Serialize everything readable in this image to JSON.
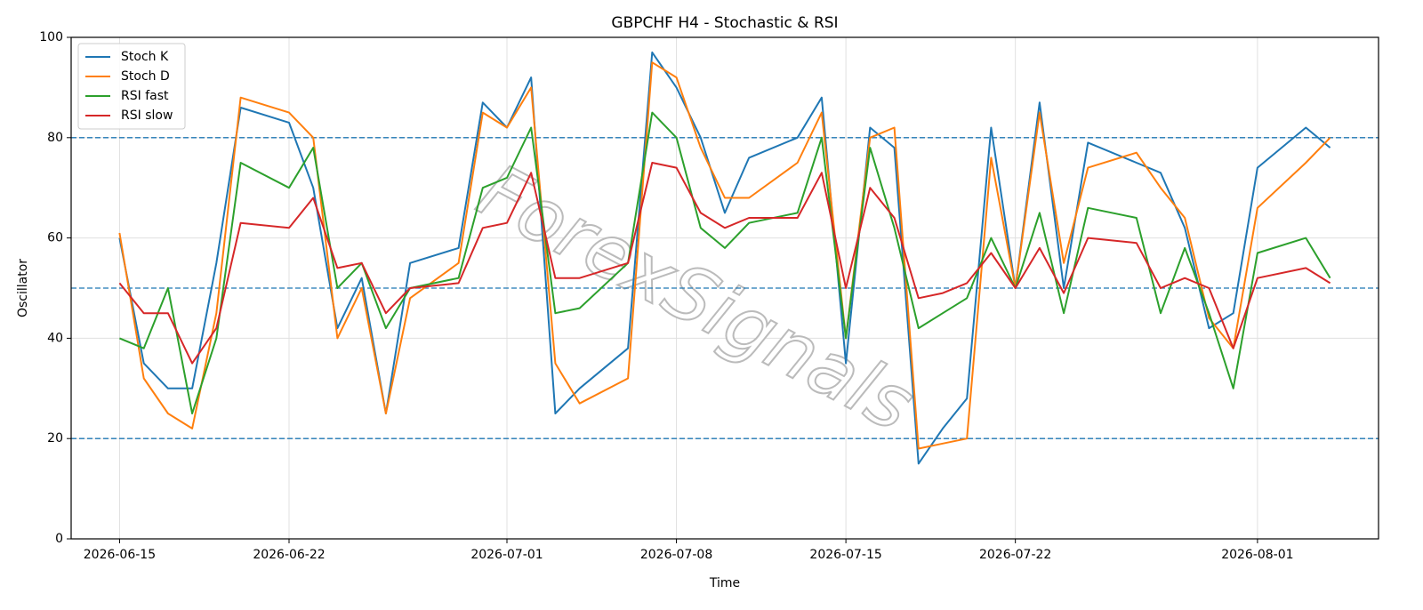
{
  "chart_data": {
    "type": "line",
    "title": "GBPCHF H4 - Stochastic & RSI",
    "x_label": "Time",
    "y_label": "Oscillator",
    "watermark": "ForexSignals",
    "x": [
      "2026-06-15",
      "2026-06-16",
      "2026-06-17",
      "2026-06-18",
      "2026-06-19",
      "2026-06-20",
      "2026-06-22",
      "2026-06-23",
      "2026-06-24",
      "2026-06-25",
      "2026-06-26",
      "2026-06-27",
      "2026-06-29",
      "2026-06-30",
      "2026-07-01",
      "2026-07-02",
      "2026-07-03",
      "2026-07-04",
      "2026-07-06",
      "2026-07-07",
      "2026-07-08",
      "2026-07-09",
      "2026-07-10",
      "2026-07-11",
      "2026-07-13",
      "2026-07-14",
      "2026-07-15",
      "2026-07-16",
      "2026-07-17",
      "2026-07-18",
      "2026-07-19",
      "2026-07-20",
      "2026-07-21",
      "2026-07-22",
      "2026-07-23",
      "2026-07-24",
      "2026-07-25",
      "2026-07-27",
      "2026-07-28",
      "2026-07-29",
      "2026-07-30",
      "2026-07-31",
      "2026-08-01",
      "2026-08-03",
      "2026-08-04"
    ],
    "series": [
      {
        "name": "Stoch K",
        "color": "#1f77b4",
        "values": [
          60,
          35,
          30,
          30,
          55,
          86,
          83,
          70,
          42,
          52,
          25,
          55,
          58,
          87,
          82,
          92,
          25,
          30,
          38,
          97,
          90,
          80,
          65,
          76,
          80,
          88,
          35,
          82,
          78,
          15,
          22,
          28,
          82,
          50,
          87,
          50,
          79,
          75,
          73,
          62,
          42,
          45,
          74,
          82,
          78
        ]
      },
      {
        "name": "Stoch D",
        "color": "#ff7f0e",
        "values": [
          61,
          32,
          25,
          22,
          45,
          88,
          85,
          80,
          40,
          50,
          25,
          48,
          55,
          85,
          82,
          90,
          35,
          27,
          32,
          95,
          92,
          78,
          68,
          68,
          75,
          85,
          40,
          80,
          82,
          18,
          19,
          20,
          76,
          50,
          85,
          55,
          74,
          77,
          70,
          64,
          44,
          38,
          66,
          75,
          80
        ]
      },
      {
        "name": "RSI fast",
        "color": "#2ca02c",
        "values": [
          40,
          38,
          50,
          25,
          40,
          75,
          70,
          78,
          50,
          55,
          42,
          50,
          52,
          70,
          72,
          82,
          45,
          46,
          55,
          85,
          80,
          62,
          58,
          63,
          65,
          80,
          40,
          78,
          62,
          42,
          45,
          48,
          60,
          50,
          65,
          45,
          66,
          64,
          45,
          58,
          45,
          30,
          57,
          60,
          52
        ]
      },
      {
        "name": "RSI slow",
        "color": "#d62728",
        "values": [
          51,
          45,
          45,
          35,
          42,
          63,
          62,
          68,
          54,
          55,
          45,
          50,
          51,
          62,
          63,
          73,
          52,
          52,
          55,
          75,
          74,
          65,
          62,
          64,
          64,
          73,
          50,
          70,
          64,
          48,
          49,
          51,
          57,
          50,
          58,
          49,
          60,
          59,
          50,
          52,
          50,
          38,
          52,
          54,
          51
        ]
      }
    ],
    "xlim": [
      "2026-06-13",
      "2026-08-06"
    ],
    "xticks": [
      "2026-06-15",
      "2026-06-22",
      "2026-07-01",
      "2026-07-08",
      "2026-07-15",
      "2026-07-22",
      "2026-08-01"
    ],
    "ylim": [
      0,
      100
    ],
    "yticks": [
      0,
      20,
      40,
      60,
      80,
      100
    ],
    "hlines": [
      20,
      50,
      80
    ],
    "hline_color": "#1f77b4",
    "grid": true,
    "legend": "upper left"
  }
}
